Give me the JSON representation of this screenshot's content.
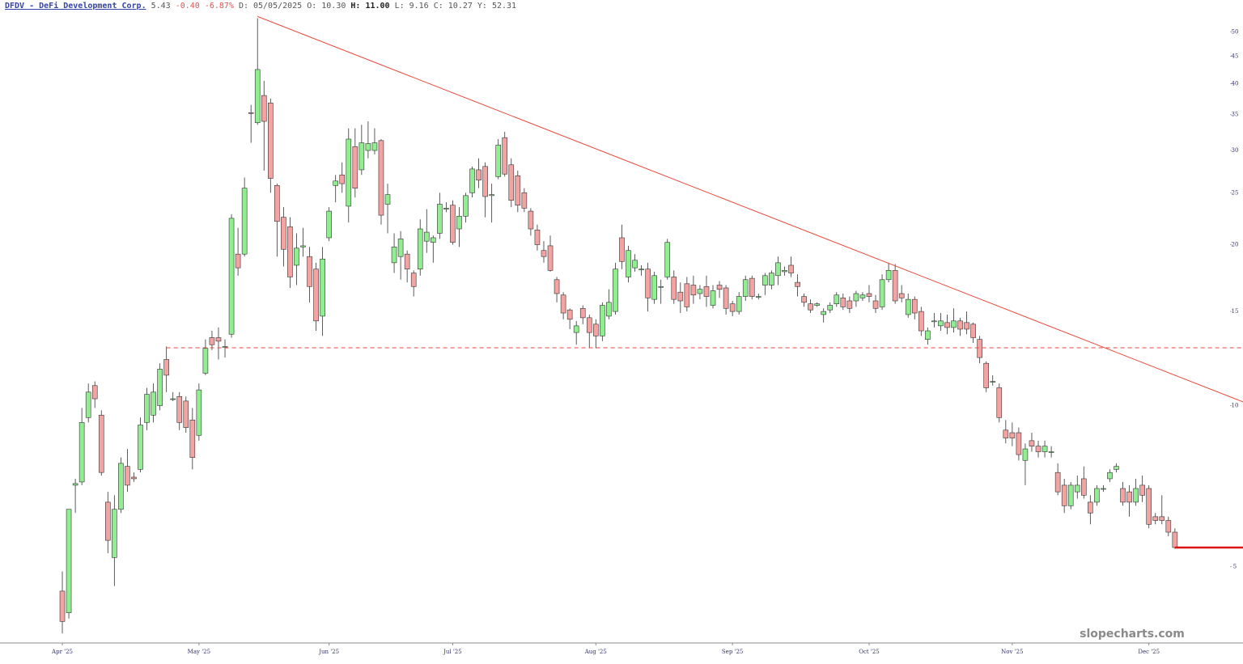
{
  "chart_data": {
    "type": "candlestick",
    "symbol": "DFDV - DeFi Development Corp.",
    "header": [
      "5.43",
      "-0.40",
      "-6.87%",
      "D: 05/05/2025",
      "O: 10.30",
      "H: 11.00",
      "L:  9.16",
      "C: 10.27",
      "Y: 52.31"
    ],
    "watermark": "slopecharts.com",
    "log_y": true,
    "grid": false,
    "up_color": "#90ee90",
    "down_color": "#f4a3a3",
    "ylim": [
      3.6,
      54.6
    ],
    "yticks": [
      5,
      10,
      15,
      20,
      25,
      30,
      35,
      40,
      45,
      50
    ],
    "categories": [
      "Apr '25",
      null,
      null,
      null,
      null,
      null,
      null,
      null,
      null,
      null,
      null,
      null,
      null,
      null,
      null,
      null,
      null,
      null,
      null,
      null,
      null,
      "May '25",
      null,
      null,
      null,
      null,
      null,
      null,
      null,
      null,
      null,
      null,
      null,
      null,
      null,
      null,
      null,
      null,
      null,
      null,
      null,
      "Jun '25",
      null,
      null,
      null,
      null,
      null,
      null,
      null,
      null,
      null,
      null,
      null,
      null,
      null,
      null,
      null,
      null,
      null,
      null,
      "Jul '25",
      null,
      null,
      null,
      null,
      null,
      null,
      null,
      null,
      null,
      null,
      null,
      null,
      null,
      null,
      null,
      null,
      null,
      null,
      null,
      null,
      null,
      "Aug '25",
      null,
      null,
      null,
      null,
      null,
      null,
      null,
      null,
      null,
      null,
      null,
      null,
      null,
      null,
      null,
      null,
      null,
      null,
      null,
      null,
      "Sep '25",
      null,
      null,
      null,
      null,
      null,
      null,
      null,
      null,
      null,
      null,
      null,
      null,
      null,
      null,
      null,
      null,
      null,
      null,
      null,
      null,
      "Oct '25",
      null,
      null,
      null,
      null,
      null,
      null,
      null,
      null,
      null,
      null,
      null,
      null,
      null,
      null,
      null,
      null,
      null,
      null,
      null,
      null,
      null,
      "Nov '25",
      null,
      null,
      null,
      null,
      null,
      null,
      null,
      null,
      null,
      null,
      null,
      null,
      null,
      null,
      null,
      null,
      null,
      null,
      null,
      null,
      "Dec '25",
      null,
      null,
      null,
      null
    ],
    "open": [
      4.5,
      4.1,
      7.1,
      7.2,
      9.5,
      10.9,
      9.6,
      6.6,
      5.2,
      6.4,
      7.7,
      7.35,
      7.6,
      9.3,
      9.6,
      10.0,
      12.2,
      10.3,
      10.4,
      10.2,
      9.4,
      8.8,
      11.5,
      13.4,
      13.4,
      12.9,
      13.6,
      19.2,
      19.2,
      35.3,
      33.8,
      38.0,
      36.8,
      25.8,
      22.5,
      21.6,
      18.3,
      19.8,
      19.0,
      18.0,
      14.7,
      20.6,
      25.8,
      27.0,
      23.6,
      30.5,
      27.6,
      30.0,
      30.0,
      31.3,
      23.8,
      18.5,
      19.0,
      19.2,
      17.7,
      18.0,
      20.3,
      20.2,
      21.0,
      23.3,
      23.7,
      21.4,
      22.6,
      25.0,
      27.6,
      28.0,
      24.7,
      26.8,
      31.7,
      28.2,
      26.9,
      25.0,
      23.1,
      21.3,
      19.5,
      19.9,
      17.2,
      16.1,
      15.1,
      13.7,
      15.2,
      14.6,
      14.2,
      13.5,
      14.7,
      15.0,
      20.6,
      17.4,
      18.1,
      18.0,
      18.0,
      15.8,
      16.7,
      17.4,
      17.4,
      16.3,
      16.9,
      16.8,
      16.2,
      16.7,
      15.4,
      16.8,
      16.6,
      15.5,
      15.0,
      16.0,
      17.3,
      16.0,
      16.8,
      16.8,
      17.5,
      17.8,
      18.3,
      17.0,
      16.0,
      15.5,
      15.4,
      14.8,
      15.1,
      15.5,
      15.9,
      15.7,
      15.7,
      15.9,
      16.2,
      15.7,
      15.3,
      17.2,
      17.9,
      16.2,
      14.8,
      15.8,
      15.0,
      13.3,
      14.4,
      14.1,
      14.3,
      14.0,
      14.4,
      14.3,
      14.2,
      13.3,
      12.0,
      11.1,
      10.8,
      9.0,
      8.9,
      8.9,
      7.9,
      8.6,
      8.4,
      8.2,
      8.2,
      7.5,
      7.1,
      6.5,
      6.9,
      7.3,
      6.6,
      6.6,
      7.0,
      7.3,
      7.6,
      7.0,
      6.9,
      6.6,
      7.1,
      7.0,
      6.2,
      6.2,
      6.1,
      5.8
    ],
    "high": [
      4.9,
      6.4,
      7.3,
      9.9,
      11.0,
      11.1,
      9.8,
      6.9,
      6.8,
      8.0,
      8.3,
      7.5,
      9.5,
      10.8,
      11.0,
      12.0,
      12.9,
      10.6,
      10.6,
      10.4,
      9.9,
      11.0,
      13.3,
      13.8,
      14.0,
      13.3,
      22.8,
      21.5,
      26.7,
      36.5,
      53.0,
      40.5,
      37.5,
      26.0,
      23.5,
      22.5,
      21.0,
      21.5,
      19.8,
      18.5,
      19.8,
      23.5,
      27.0,
      28.5,
      33.0,
      33.0,
      33.5,
      34.0,
      33.0,
      31.5,
      26.0,
      21.0,
      21.2,
      19.5,
      17.9,
      22.3,
      23.3,
      20.8,
      25.0,
      24.0,
      24.2,
      23.5,
      25.0,
      28.0,
      29.0,
      28.5,
      26.0,
      31.5,
      32.5,
      29.0,
      27.5,
      25.5,
      23.4,
      21.8,
      20.3,
      20.8,
      17.4,
      16.3,
      15.2,
      14.4,
      15.4,
      14.8,
      14.5,
      15.6,
      16.5,
      18.5,
      21.8,
      19.9,
      19.2,
      18.3,
      18.5,
      17.8,
      17.2,
      20.5,
      17.9,
      17.0,
      17.4,
      17.5,
      16.8,
      17.5,
      16.8,
      17.1,
      16.8,
      15.7,
      16.3,
      17.5,
      17.5,
      16.2,
      17.7,
      17.9,
      19.0,
      18.2,
      19.0,
      17.6,
      16.2,
      15.8,
      15.6,
      15.2,
      15.6,
      16.3,
      16.2,
      16.0,
      16.4,
      16.3,
      16.8,
      16.1,
      17.6,
      18.5,
      18.4,
      16.8,
      16.2,
      16.0,
      15.3,
      14.0,
      14.9,
      14.9,
      14.8,
      15.2,
      14.6,
      15.0,
      14.3,
      13.5,
      12.1,
      11.4,
      11.0,
      9.4,
      9.3,
      9.1,
      8.5,
      8.9,
      8.6,
      8.6,
      8.4,
      7.8,
      7.3,
      7.2,
      7.4,
      7.7,
      6.8,
      7.1,
      7.1,
      7.6,
      7.8,
      7.2,
      7.1,
      7.3,
      7.4,
      7.1,
      6.3,
      6.8,
      6.2,
      5.9
    ],
    "low": [
      3.75,
      4.0,
      6.3,
      7.1,
      9.3,
      9.9,
      7.4,
      5.3,
      4.6,
      6.3,
      6.9,
      7.2,
      7.5,
      9.0,
      9.3,
      9.8,
      10.6,
      10.2,
      9.0,
      8.9,
      7.6,
      8.6,
      11.4,
      12.7,
      12.2,
      12.3,
      13.4,
      17.5,
      19.0,
      31.0,
      33.5,
      27.5,
      25.0,
      19.0,
      18.2,
      16.6,
      16.8,
      19.0,
      15.6,
      13.8,
      13.5,
      20.3,
      24.0,
      25.0,
      22.0,
      24.5,
      27.0,
      29.0,
      29.5,
      21.8,
      21.0,
      17.7,
      17.2,
      17.0,
      16.0,
      17.5,
      19.3,
      18.5,
      20.5,
      23.0,
      20.0,
      19.8,
      22.0,
      24.5,
      25.5,
      22.5,
      22.0,
      26.5,
      26.8,
      23.5,
      23.0,
      23.0,
      20.8,
      19.5,
      18.5,
      17.8,
      15.6,
      14.5,
      13.9,
      13.0,
      14.2,
      12.8,
      12.8,
      13.2,
      14.5,
      14.8,
      18.0,
      17.0,
      17.8,
      17.5,
      15.0,
      15.5,
      15.5,
      17.2,
      15.5,
      14.9,
      15.0,
      15.5,
      15.8,
      15.3,
      15.2,
      15.9,
      14.8,
      14.7,
      14.8,
      15.7,
      15.8,
      15.8,
      16.1,
      16.5,
      16.8,
      17.5,
      17.4,
      16.0,
      15.3,
      14.9,
      15.3,
      14.3,
      14.9,
      15.3,
      15.1,
      14.9,
      15.3,
      15.7,
      15.6,
      14.9,
      15.1,
      17.0,
      15.5,
      15.6,
      14.6,
      14.5,
      13.5,
      13.0,
      14.0,
      13.8,
      13.6,
      13.7,
      13.5,
      13.6,
      13.1,
      12.0,
      10.6,
      10.9,
      9.3,
      8.5,
      8.4,
      7.9,
      7.1,
      8.2,
      8.0,
      8.0,
      8.0,
      6.8,
      6.3,
      6.4,
      6.7,
      6.7,
      6.0,
      6.5,
      6.9,
      7.2,
      7.5,
      6.5,
      6.2,
      6.5,
      6.6,
      5.9,
      6.0,
      6.0,
      5.7,
      5.4
    ],
    "close": [
      3.95,
      6.4,
      7.15,
      9.3,
      10.6,
      10.3,
      7.5,
      5.6,
      6.4,
      7.8,
      7.1,
      7.3,
      9.2,
      10.5,
      10.6,
      11.7,
      11.4,
      10.3,
      9.3,
      9.1,
      8.0,
      10.7,
      12.8,
      13.0,
      13.2,
      12.9,
      22.4,
      18.1,
      25.5,
      35.2,
      42.5,
      34.0,
      26.6,
      22.1,
      19.6,
      17.4,
      19.7,
      19.9,
      16.7,
      14.4,
      18.8,
      23.1,
      26.3,
      26.0,
      31.5,
      25.5,
      31.0,
      30.9,
      31.0,
      22.7,
      24.8,
      19.8,
      20.5,
      18.0,
      16.7,
      21.4,
      21.1,
      20.6,
      23.8,
      23.4,
      20.2,
      22.6,
      24.7,
      27.7,
      26.4,
      24.6,
      24.8,
      30.7,
      27.1,
      24.2,
      23.7,
      23.4,
      21.4,
      20.0,
      19.0,
      17.9,
      16.2,
      14.9,
      14.5,
      14.1,
      14.6,
      13.7,
      13.5,
      15.4,
      15.6,
      18.0,
      18.6,
      19.5,
      18.7,
      18.0,
      15.9,
      17.5,
      16.7,
      20.2,
      15.8,
      15.7,
      15.3,
      16.1,
      16.5,
      16.0,
      16.4,
      16.5,
      15.2,
      15.0,
      16.0,
      17.2,
      16.0,
      16.0,
      17.5,
      17.7,
      18.5,
      17.9,
      17.7,
      16.7,
      15.6,
      15.1,
      15.5,
      15.0,
      15.4,
      16.1,
      15.3,
      15.2,
      16.2,
      16.1,
      16.0,
      15.2,
      17.2,
      17.9,
      15.7,
      15.9,
      15.8,
      14.9,
      13.8,
      13.8,
      14.4,
      14.4,
      14.0,
      14.4,
      13.9,
      13.9,
      13.4,
      12.3,
      10.8,
      11.1,
      9.5,
      8.7,
      8.7,
      8.1,
      8.3,
      8.4,
      8.2,
      8.4,
      8.2,
      6.9,
      6.5,
      7.1,
      7.1,
      6.8,
      6.3,
      7.0,
      7.0,
      7.5,
      7.7,
      6.6,
      6.6,
      7.0,
      6.8,
      6.0,
      6.1,
      6.1,
      5.8,
      5.43
    ],
    "lines": [
      {
        "color": "#e84a3c",
        "dash": false,
        "width": 1,
        "x": [
          30,
          181.5
        ],
        "y": [
          53.4,
          10.16
        ]
      },
      {
        "color": "#e84a3c",
        "dash": true,
        "width": 1,
        "x": [
          16,
          181.5
        ],
        "y": [
          12.83,
          12.83
        ]
      },
      {
        "color": "#dd1111",
        "dash": false,
        "width": 2.5,
        "x": [
          171,
          181.5
        ],
        "y": [
          5.43,
          5.43
        ]
      }
    ]
  }
}
